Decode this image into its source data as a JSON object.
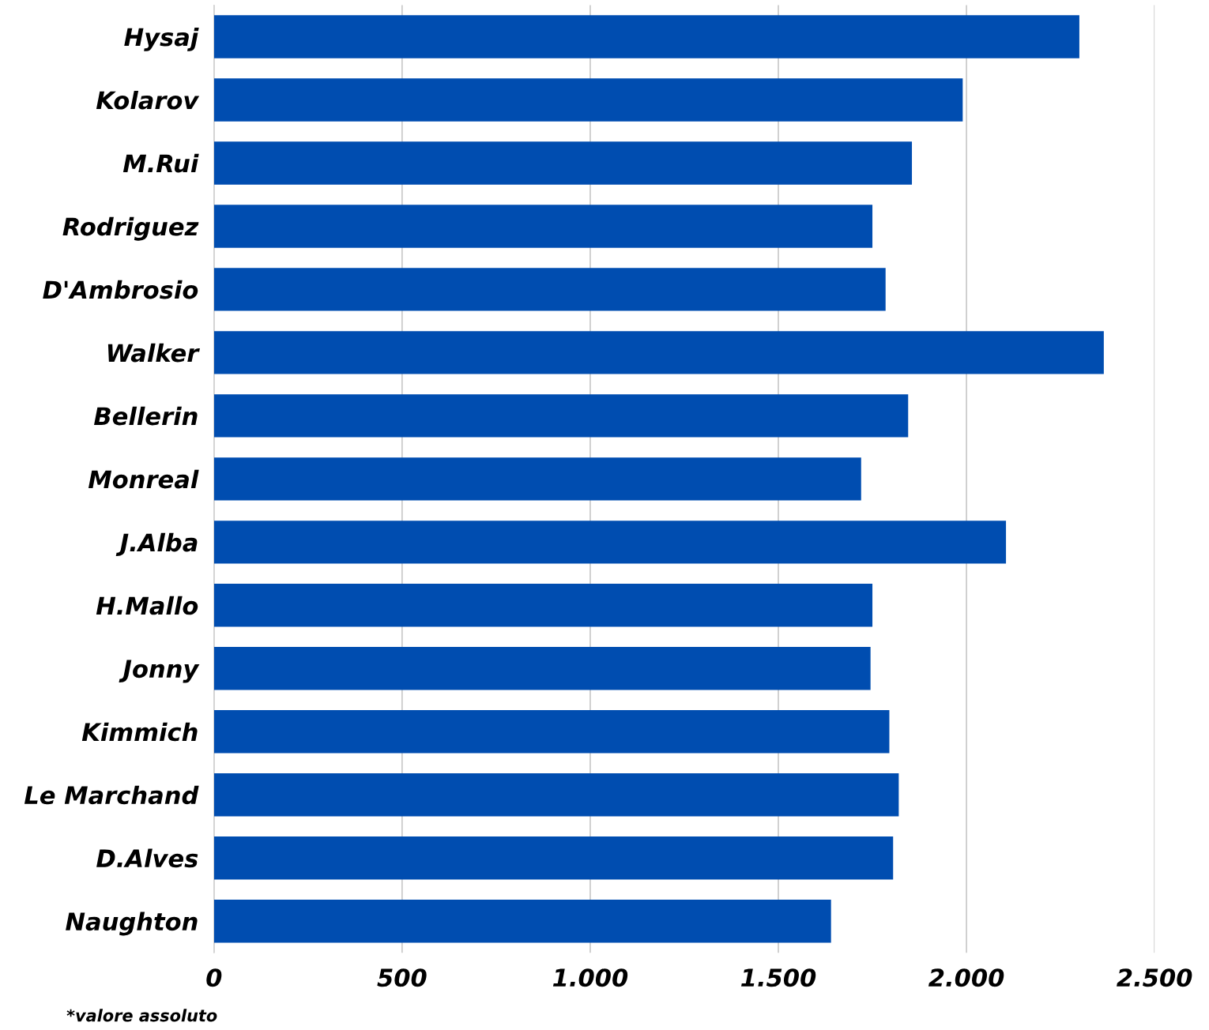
{
  "chart_data": {
    "type": "bar",
    "orientation": "horizontal",
    "categories": [
      "Hysaj",
      "Kolarov",
      "M.Rui",
      "Rodriguez",
      "D'Ambrosio",
      "Walker",
      "Bellerin",
      "Monreal",
      "J.Alba",
      "H.Mallo",
      "Jonny",
      "Kimmich",
      "Le Marchand",
      "D.Alves",
      "Naughton"
    ],
    "values": [
      2300,
      1990,
      1855,
      1750,
      1785,
      2365,
      1845,
      1720,
      2105,
      1750,
      1745,
      1795,
      1820,
      1805,
      1640
    ],
    "color": "#004db0",
    "xlim": [
      0,
      2500
    ],
    "xticks": [
      0,
      500,
      {
        "value": 1000,
        "label": "1.000"
      },
      {
        "value": 1500,
        "label": "1.500"
      },
      {
        "value": 2000,
        "label": "2.000"
      },
      {
        "value": 2500,
        "label": "2.500"
      }
    ],
    "grid": "x",
    "annotations": [
      "*valore assoluto"
    ]
  }
}
